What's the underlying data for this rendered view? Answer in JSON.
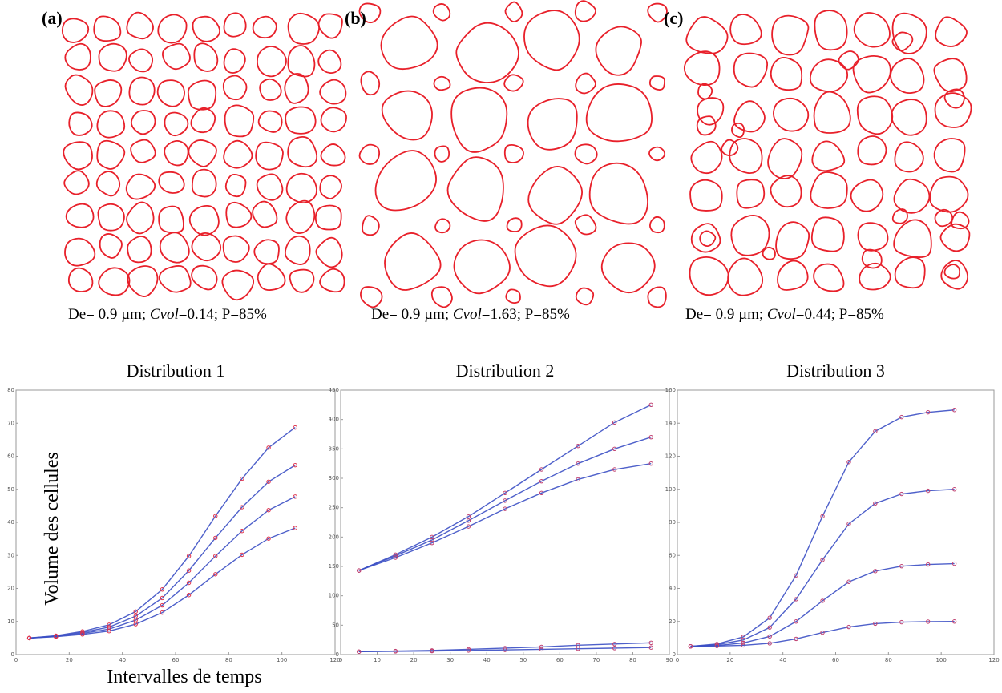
{
  "panels": [
    {
      "label": "(a)",
      "caption": [
        "De= 0.9 µm; ",
        "Cvol",
        "=0.14; P=85%"
      ]
    },
    {
      "label": "(b)",
      "caption": [
        "De= 0.9 µm; ",
        "Cvol",
        "=1.63; P=85%"
      ]
    },
    {
      "label": "(c)",
      "caption": [
        "De= 0.9 µm; ",
        "Cvol",
        "=0.44; P=85%"
      ]
    }
  ],
  "chart_data": [
    {
      "type": "line",
      "title": "Distribution 1",
      "xlabel": "Intervalles de temps",
      "ylabel": "Volume des cellules",
      "x": [
        5,
        15,
        25,
        35,
        45,
        55,
        65,
        75,
        85,
        95,
        105
      ],
      "xlim": [
        0,
        120
      ],
      "xticks": [
        0,
        20,
        40,
        60,
        80,
        100,
        120
      ],
      "ylim": [
        0,
        80
      ],
      "yticks": [
        0,
        10,
        20,
        30,
        40,
        50,
        60,
        70,
        80
      ],
      "marker_color": "#e0304a",
      "series": [
        {
          "color": "#3b4fc4",
          "values": [
            5,
            5.7,
            7,
            9,
            13,
            19.7,
            29.8,
            41.9,
            53.2,
            62.6,
            68.7
          ]
        },
        {
          "color": "#3b4fc4",
          "values": [
            5,
            5.6,
            6.7,
            8.3,
            11.6,
            17.1,
            25.4,
            35.3,
            44.6,
            52.3,
            57.3
          ]
        },
        {
          "color": "#3b4fc4",
          "values": [
            5,
            5.5,
            6.4,
            7.7,
            10.4,
            14.9,
            21.7,
            29.8,
            37.4,
            43.7,
            47.8
          ]
        },
        {
          "color": "#3b4fc4",
          "values": [
            5,
            5.4,
            6.1,
            7.1,
            9.2,
            12.7,
            18,
            24.3,
            30.2,
            35.1,
            38.3
          ]
        }
      ]
    },
    {
      "type": "line",
      "title": "Distribution 2",
      "x": [
        5,
        15,
        25,
        35,
        45,
        55,
        65,
        75,
        85
      ],
      "xlim": [
        0,
        90
      ],
      "xticks": [
        0,
        10,
        20,
        30,
        40,
        50,
        60,
        70,
        80,
        90
      ],
      "ylim": [
        0,
        450
      ],
      "yticks": [
        0,
        50,
        100,
        150,
        200,
        250,
        300,
        350,
        400,
        450
      ],
      "marker_color": "#c04070",
      "series": [
        {
          "color": "#3b4fc4",
          "values": [
            143,
            170,
            200,
            235,
            275,
            315,
            355,
            395,
            425
          ]
        },
        {
          "color": "#3b4fc4",
          "values": [
            143,
            168,
            195,
            228,
            262,
            295,
            325,
            350,
            370
          ]
        },
        {
          "color": "#3b4fc4",
          "values": [
            143,
            165,
            190,
            218,
            248,
            275,
            298,
            315,
            325
          ]
        },
        {
          "color": "#3b4fc4",
          "values": [
            5,
            6,
            7,
            9,
            11,
            13,
            16,
            18,
            20
          ]
        },
        {
          "color": "#3b4fc4",
          "values": [
            5,
            5.5,
            6,
            7,
            8,
            9,
            10,
            11,
            12
          ]
        }
      ]
    },
    {
      "type": "line",
      "title": "Distribution 3",
      "x": [
        5,
        15,
        25,
        35,
        45,
        55,
        65,
        75,
        85,
        95,
        105
      ],
      "xlim": [
        0,
        120
      ],
      "xticks": [
        0,
        20,
        40,
        60,
        80,
        100,
        120
      ],
      "ylim": [
        0,
        160
      ],
      "yticks": [
        0,
        20,
        40,
        60,
        80,
        100,
        120,
        140,
        160
      ],
      "marker_color": "#c04070",
      "series": [
        {
          "color": "#3b4fc4",
          "values": [
            5,
            6.4,
            10.7,
            22.2,
            47.9,
            83.7,
            116.5,
            135.1,
            143.7,
            146.6,
            148
          ]
        },
        {
          "color": "#3b4fc4",
          "values": [
            5,
            6,
            8.8,
            16.4,
            33.5,
            57.3,
            79.1,
            91.5,
            97.2,
            99.1,
            100
          ]
        },
        {
          "color": "#3b4fc4",
          "values": [
            5,
            5.5,
            7,
            11,
            20,
            32.5,
            44,
            50.5,
            53.5,
            54.5,
            55
          ]
        },
        {
          "color": "#3b4fc4",
          "values": [
            5,
            5.2,
            5.6,
            6.8,
            9.5,
            13.3,
            16.7,
            18.7,
            19.6,
            19.9,
            20
          ]
        }
      ]
    }
  ]
}
